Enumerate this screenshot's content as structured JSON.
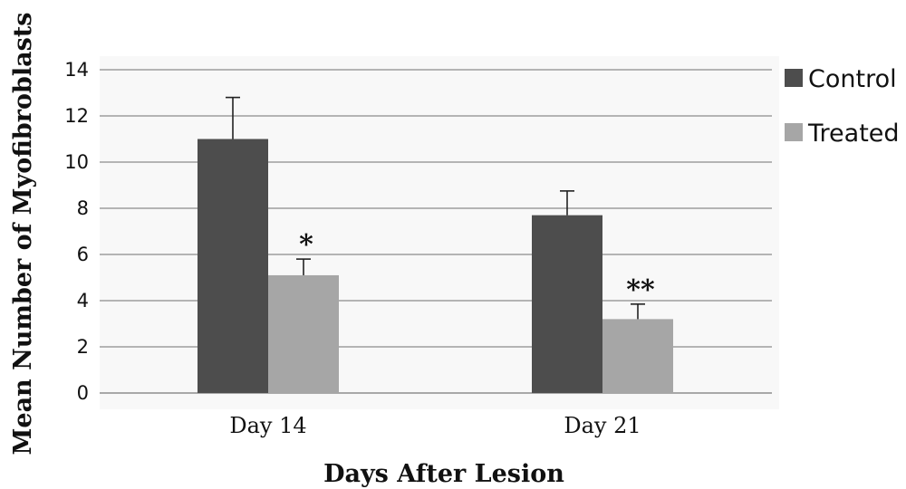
{
  "chart_data": {
    "type": "bar",
    "categories": [
      "Day 14",
      "Day 21"
    ],
    "series": [
      {
        "name": "Control",
        "values": [
          11.0,
          7.7
        ],
        "errors": [
          1.8,
          1.05
        ],
        "color": "#4d4d4d"
      },
      {
        "name": "Treated",
        "values": [
          5.1,
          3.2
        ],
        "errors": [
          0.7,
          0.65
        ],
        "color": "#a6a6a6"
      }
    ],
    "annotations": [
      {
        "category": "Day 14",
        "series": "Treated",
        "text": "*"
      },
      {
        "category": "Day 21",
        "series": "Treated",
        "text": "**"
      }
    ],
    "xlabel": "Days After Lesion",
    "ylabel": "Mean Number of Myofibroblasts",
    "ylim": [
      0,
      14
    ],
    "yticks": [
      0,
      2,
      4,
      6,
      8,
      10,
      12,
      14
    ],
    "grid": true,
    "legend": "right"
  }
}
